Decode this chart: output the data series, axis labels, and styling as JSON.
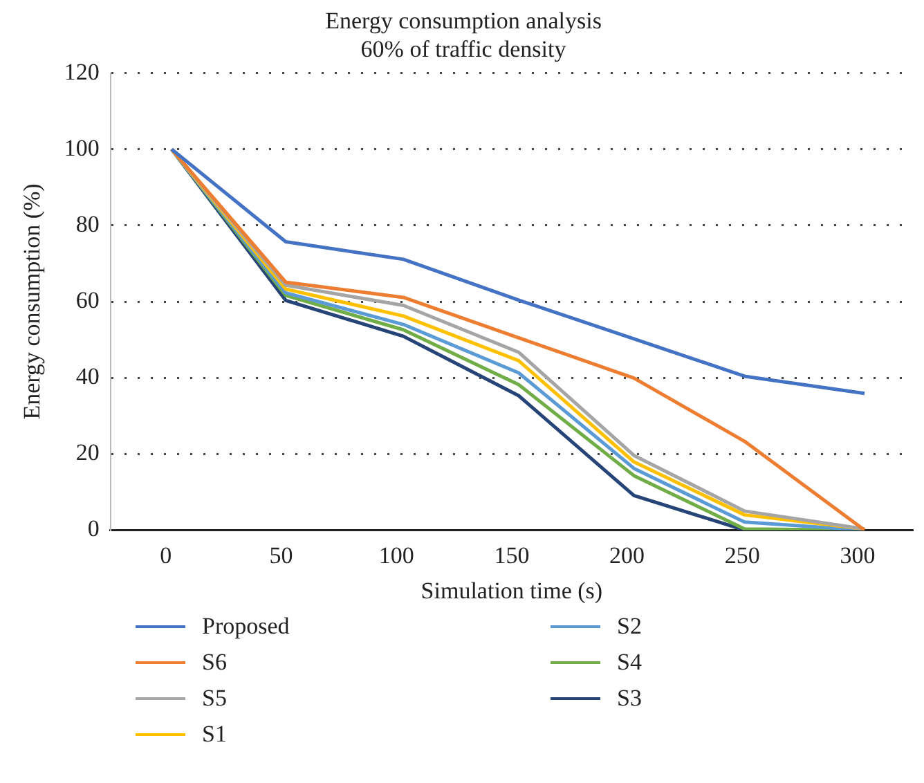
{
  "chart_data": {
    "type": "line",
    "title": "Energy consumption analysis",
    "subtitle": "60% of traffic density",
    "xlabel": "Simulation time (s)",
    "ylabel": "Energy consumption (%)",
    "x": [
      2.5,
      52,
      103,
      153,
      203,
      251,
      303
    ],
    "xlim": [
      -24,
      324
    ],
    "xticks": [
      0,
      50,
      100,
      150,
      200,
      250,
      300
    ],
    "ylim": [
      0,
      120
    ],
    "yticks": [
      0,
      20,
      40,
      60,
      80,
      100,
      120
    ],
    "grid": "y",
    "legend": "bottom",
    "marker": "none",
    "line_style": "solid",
    "series": [
      {
        "name": "Proposed",
        "color": "#4472c4",
        "values": [
          100,
          75.7,
          71.1,
          60.4,
          50.2,
          40.4,
          35.9
        ]
      },
      {
        "name": "S6",
        "color": "#ed7d31",
        "values": [
          100,
          65.1,
          61.1,
          50.5,
          39.9,
          23.3,
          0
        ]
      },
      {
        "name": "S5",
        "color": "#a5a5a5",
        "values": [
          100,
          64.3,
          59,
          46.7,
          19.6,
          5,
          0.3
        ]
      },
      {
        "name": "S1",
        "color": "#ffc000",
        "values": [
          100,
          63.3,
          56.2,
          44.5,
          17.9,
          4,
          0.3
        ]
      },
      {
        "name": "S2",
        "color": "#5b9bd5",
        "values": [
          100,
          62.3,
          54,
          41.3,
          16.2,
          2.1,
          0
        ]
      },
      {
        "name": "S4",
        "color": "#70ad47",
        "values": [
          100,
          61.6,
          52.6,
          38.2,
          14.3,
          0.3,
          0
        ]
      },
      {
        "name": "S3",
        "color": "#264478",
        "values": [
          100,
          60.3,
          50.9,
          35.3,
          9.1,
          0,
          0
        ]
      }
    ]
  }
}
